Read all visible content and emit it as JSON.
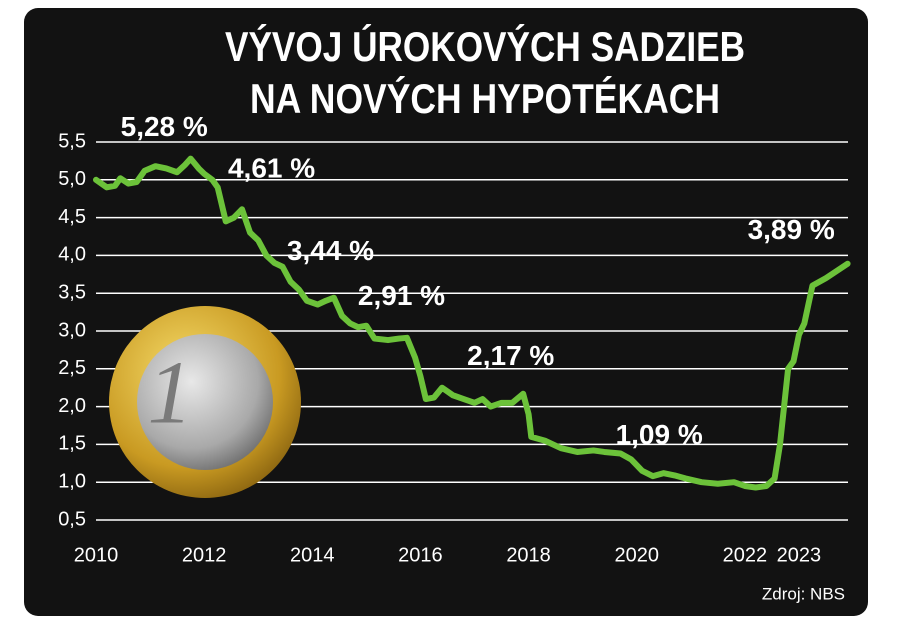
{
  "chart_data": {
    "type": "line",
    "title": [
      "VÝVOJ ÚROKOVÝCH SADZIEB",
      "NA NOVÝCH HYPOTÉKACH"
    ],
    "source": "Zdroj: NBS",
    "x": [
      2010.0,
      2010.2,
      2010.35,
      2010.45,
      2010.6,
      2010.75,
      2010.9,
      2011.1,
      2011.3,
      2011.5,
      2011.65,
      2011.75,
      2011.9,
      2012.0,
      2012.15,
      2012.25,
      2012.4,
      2012.55,
      2012.7,
      2012.85,
      2013.0,
      2013.15,
      2013.3,
      2013.45,
      2013.6,
      2013.75,
      2013.9,
      2014.1,
      2014.25,
      2014.4,
      2014.55,
      2014.7,
      2014.85,
      2015.0,
      2015.15,
      2015.4,
      2015.6,
      2015.75,
      2015.9,
      2016.0,
      2016.1,
      2016.25,
      2016.4,
      2016.6,
      2016.8,
      2017.0,
      2017.15,
      2017.3,
      2017.5,
      2017.7,
      2017.9,
      2018.0,
      2018.05,
      2018.3,
      2018.6,
      2018.9,
      2019.2,
      2019.4,
      2019.7,
      2019.9,
      2020.1,
      2020.3,
      2020.5,
      2020.7,
      2020.9,
      2021.2,
      2021.5,
      2021.8,
      2022.0,
      2022.2,
      2022.4,
      2022.55,
      2022.65,
      2022.8,
      2022.9,
      2023.0,
      2023.1,
      2023.25,
      2023.5,
      2023.9
    ],
    "series": [
      {
        "color": "#6cc23a",
        "values": [
          5.0,
          4.9,
          4.92,
          5.02,
          4.95,
          4.97,
          5.12,
          5.18,
          5.15,
          5.1,
          5.2,
          5.28,
          5.15,
          5.08,
          5.0,
          4.9,
          4.45,
          4.5,
          4.61,
          4.3,
          4.2,
          4.0,
          3.9,
          3.85,
          3.65,
          3.55,
          3.4,
          3.35,
          3.4,
          3.44,
          3.2,
          3.1,
          3.05,
          3.07,
          2.9,
          2.88,
          2.9,
          2.91,
          2.65,
          2.4,
          2.1,
          2.12,
          2.25,
          2.15,
          2.1,
          2.05,
          2.1,
          2.0,
          2.05,
          2.05,
          2.17,
          1.9,
          1.6,
          1.55,
          1.45,
          1.4,
          1.42,
          1.4,
          1.38,
          1.3,
          1.15,
          1.08,
          1.12,
          1.09,
          1.05,
          1.0,
          0.98,
          1.0,
          0.95,
          0.93,
          0.95,
          1.05,
          1.5,
          2.5,
          2.6,
          2.95,
          3.1,
          3.6,
          3.7,
          3.89
        ]
      }
    ],
    "annotations": [
      {
        "label": "5,28 %",
        "x": 2011.75,
        "value": 5.28
      },
      {
        "label": "4,61 %",
        "x": 2012.7,
        "value": 4.61
      },
      {
        "label": "3,44 %",
        "x": 2014.4,
        "value": 3.44
      },
      {
        "label": "2,91 %",
        "x": 2015.75,
        "value": 2.91
      },
      {
        "label": "2,17 %",
        "x": 2017.9,
        "value": 2.17
      },
      {
        "label": "1,09 %",
        "x": 2020.7,
        "value": 1.09
      },
      {
        "label": "3,89 %",
        "x": 2023.9,
        "value": 3.89
      }
    ],
    "xlim": [
      2010,
      2024
    ],
    "xticks": [
      2010,
      2012,
      2014,
      2016,
      2018,
      2020,
      2022,
      2023
    ],
    "ylim": [
      0.5,
      5.5
    ],
    "yticks": [
      {
        "value": 0.5,
        "label": "0,5"
      },
      {
        "value": 1.0,
        "label": "1,0"
      },
      {
        "value": 1.5,
        "label": "1,5"
      },
      {
        "value": 2.0,
        "label": "2,0"
      },
      {
        "value": 2.5,
        "label": "2,5"
      },
      {
        "value": 3.0,
        "label": "3,0"
      },
      {
        "value": 3.5,
        "label": "3,5"
      },
      {
        "value": 4.0,
        "label": "4,0"
      },
      {
        "value": 4.5,
        "label": "4,5"
      },
      {
        "value": 5.0,
        "label": "5,0"
      },
      {
        "value": 5.5,
        "label": "5,5"
      }
    ],
    "grid": true
  }
}
